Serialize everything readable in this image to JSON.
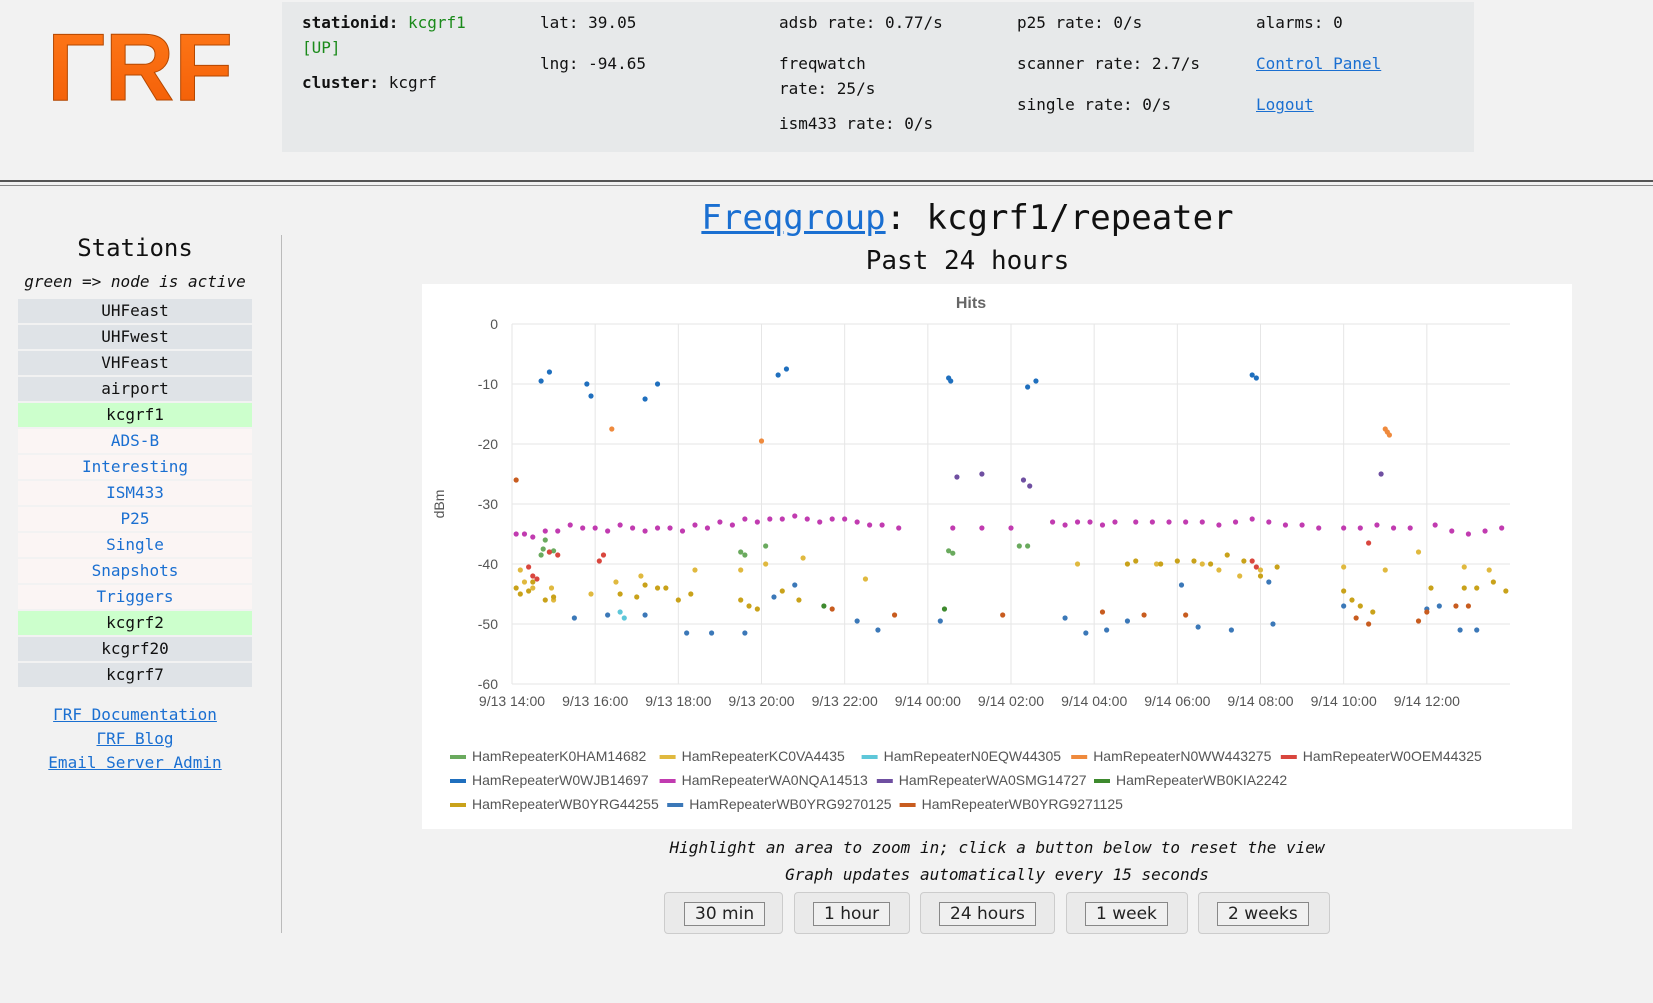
{
  "logo": {
    "text": "ΓRF"
  },
  "header": {
    "stationid_label": "stationid:",
    "stationid_value": "kcgrf1",
    "stationid_status": "[UP]",
    "cluster_label": "cluster:",
    "cluster_value": "kcgrf",
    "lat": "lat: 39.05",
    "lng": "lng: -94.65",
    "adsb_rate": "adsb rate: 0.77/s",
    "freqwatch_rate_line1": "freqwatch",
    "freqwatch_rate_line2": "rate: 25/s",
    "ism433_rate": "ism433 rate: 0/s",
    "p25_rate": "p25 rate: 0/s",
    "scanner_rate": "scanner rate: 2.7/s",
    "single_rate": "single rate: 0/s",
    "alarms": "alarms: 0",
    "control_panel": "Control Panel",
    "logout": "Logout"
  },
  "sidebar": {
    "title": "Stations",
    "note": "green => node is active",
    "items": [
      {
        "label": "UHFeast",
        "kind": "inactive"
      },
      {
        "label": "UHFwest",
        "kind": "inactive"
      },
      {
        "label": "VHFeast",
        "kind": "inactive"
      },
      {
        "label": "airport",
        "kind": "inactive"
      },
      {
        "label": "kcgrf1",
        "kind": "active"
      },
      {
        "label": "ADS-B",
        "kind": "link"
      },
      {
        "label": "Interesting",
        "kind": "link"
      },
      {
        "label": "ISM433",
        "kind": "link"
      },
      {
        "label": "P25",
        "kind": "link"
      },
      {
        "label": "Single",
        "kind": "link"
      },
      {
        "label": "Snapshots",
        "kind": "link"
      },
      {
        "label": "Triggers",
        "kind": "link"
      },
      {
        "label": "kcgrf2",
        "kind": "active"
      },
      {
        "label": "kcgrf20",
        "kind": "inactive"
      },
      {
        "label": "kcgrf7",
        "kind": "inactive"
      }
    ],
    "links": [
      "ΓRF Documentation",
      "ΓRF Blog",
      "Email Server Admin"
    ]
  },
  "main": {
    "title_link": "Freqgroup",
    "title_rest": ": kcgrf1/repeater",
    "subtitle": "Past 24 hours",
    "note1": "Highlight an area to zoom in; click a button below to reset the view",
    "note2": "Graph updates automatically every 15 seconds",
    "buttons": [
      "30 min",
      "1 hour",
      "24 hours",
      "1 week",
      "2 weeks"
    ]
  },
  "chart_data": {
    "type": "scatter",
    "title": "Hits",
    "ylabel": "dBm",
    "ylim": [
      -60,
      0
    ],
    "yticks": [
      0,
      -10,
      -20,
      -30,
      -40,
      -50,
      -60
    ],
    "xlim_hours": [
      14,
      38
    ],
    "xticks": [
      "9/13 14:00",
      "9/13 16:00",
      "9/13 18:00",
      "9/13 20:00",
      "9/13 22:00",
      "9/14 00:00",
      "9/14 02:00",
      "9/14 04:00",
      "9/14 06:00",
      "9/14 08:00",
      "9/14 10:00",
      "9/14 12:00"
    ],
    "grid": true,
    "legend_position": "bottom",
    "series": [
      {
        "name": "HamRepeaterK0HAM14682",
        "color": "#6aaa5e",
        "points": [
          [
            14.7,
            -38.5
          ],
          [
            14.75,
            -37.5
          ],
          [
            14.8,
            -36
          ],
          [
            14.9,
            -38
          ],
          [
            15.0,
            -37.8
          ],
          [
            19.5,
            -38
          ],
          [
            19.6,
            -38.5
          ],
          [
            20.1,
            -37
          ],
          [
            24.5,
            -37.8
          ],
          [
            24.6,
            -38.2
          ],
          [
            26.2,
            -37
          ],
          [
            26.4,
            -37
          ]
        ]
      },
      {
        "name": "HamRepeaterKC0VA4435",
        "color": "#e0b93f",
        "points": [
          [
            14.2,
            -41
          ],
          [
            14.3,
            -43
          ],
          [
            14.5,
            -44
          ],
          [
            14.95,
            -44
          ],
          [
            15.0,
            -46
          ],
          [
            15.9,
            -45
          ],
          [
            16.5,
            -43
          ],
          [
            17.1,
            -42
          ],
          [
            18.4,
            -41
          ],
          [
            19.5,
            -41
          ],
          [
            20.1,
            -40
          ],
          [
            21.0,
            -39
          ],
          [
            22.5,
            -42.5
          ],
          [
            27.6,
            -40
          ],
          [
            29.5,
            -40
          ],
          [
            30.6,
            -40
          ],
          [
            31.0,
            -41
          ],
          [
            31.5,
            -42
          ],
          [
            32.0,
            -41
          ],
          [
            34.0,
            -40.5
          ],
          [
            35.0,
            -41
          ],
          [
            35.8,
            -38
          ],
          [
            36.9,
            -40.5
          ],
          [
            37.5,
            -41
          ]
        ]
      },
      {
        "name": "HamRepeaterN0EQW44305",
        "color": "#5ec7d9",
        "points": [
          [
            16.7,
            -49
          ],
          [
            16.6,
            -48
          ]
        ]
      },
      {
        "name": "HamRepeaterN0WW443275",
        "color": "#ef8a3d",
        "points": [
          [
            16.4,
            -17.5
          ],
          [
            20.0,
            -19.5
          ],
          [
            35.0,
            -17.5
          ],
          [
            35.05,
            -18
          ],
          [
            35.1,
            -18.5
          ]
        ]
      },
      {
        "name": "HamRepeaterW0OEM44325",
        "color": "#d9463e",
        "points": [
          [
            14.4,
            -40.5
          ],
          [
            14.5,
            -42
          ],
          [
            14.6,
            -42.5
          ],
          [
            14.9,
            -38
          ],
          [
            15.1,
            -38.5
          ],
          [
            16.1,
            -39.5
          ],
          [
            16.2,
            -38.5
          ],
          [
            31.8,
            -39.5
          ],
          [
            31.9,
            -40.5
          ],
          [
            34.6,
            -36.5
          ]
        ]
      },
      {
        "name": "HamRepeaterW0WJB14697",
        "color": "#1f6fbe",
        "points": [
          [
            14.7,
            -9.5
          ],
          [
            14.9,
            -8
          ],
          [
            15.8,
            -10
          ],
          [
            15.9,
            -12
          ],
          [
            17.2,
            -12.5
          ],
          [
            17.5,
            -10
          ],
          [
            20.4,
            -8.5
          ],
          [
            20.6,
            -7.5
          ],
          [
            24.5,
            -9
          ],
          [
            24.55,
            -9.5
          ],
          [
            26.4,
            -10.5
          ],
          [
            26.6,
            -9.5
          ],
          [
            31.8,
            -8.5
          ],
          [
            31.9,
            -9
          ]
        ]
      },
      {
        "name": "HamRepeaterWA0NQA14513",
        "color": "#c13bb0",
        "points": [
          [
            14.1,
            -35
          ],
          [
            14.3,
            -35
          ],
          [
            14.5,
            -35.5
          ],
          [
            14.8,
            -34.5
          ],
          [
            15.1,
            -34.5
          ],
          [
            15.4,
            -33.5
          ],
          [
            15.7,
            -34
          ],
          [
            16.0,
            -34
          ],
          [
            16.3,
            -34.5
          ],
          [
            16.6,
            -33.5
          ],
          [
            16.9,
            -34
          ],
          [
            17.2,
            -34.5
          ],
          [
            17.5,
            -34
          ],
          [
            17.8,
            -34
          ],
          [
            18.1,
            -34.5
          ],
          [
            18.4,
            -33.5
          ],
          [
            18.7,
            -34
          ],
          [
            19.0,
            -33
          ],
          [
            19.3,
            -33.5
          ],
          [
            19.6,
            -32.5
          ],
          [
            19.9,
            -33
          ],
          [
            20.2,
            -32.5
          ],
          [
            20.5,
            -32.5
          ],
          [
            20.8,
            -32
          ],
          [
            21.1,
            -32.5
          ],
          [
            21.4,
            -33
          ],
          [
            21.7,
            -32.5
          ],
          [
            22.0,
            -32.5
          ],
          [
            22.3,
            -33
          ],
          [
            22.6,
            -33.5
          ],
          [
            22.9,
            -33.5
          ],
          [
            23.3,
            -34
          ],
          [
            24.6,
            -34
          ],
          [
            25.3,
            -34
          ],
          [
            26.0,
            -34
          ],
          [
            27.0,
            -33
          ],
          [
            27.3,
            -33.5
          ],
          [
            27.6,
            -33
          ],
          [
            27.9,
            -33
          ],
          [
            28.2,
            -33.5
          ],
          [
            28.5,
            -33
          ],
          [
            29.0,
            -33
          ],
          [
            29.4,
            -33
          ],
          [
            29.8,
            -33
          ],
          [
            30.2,
            -33
          ],
          [
            30.6,
            -33
          ],
          [
            31.0,
            -33.5
          ],
          [
            31.4,
            -33
          ],
          [
            31.8,
            -32.5
          ],
          [
            32.2,
            -33
          ],
          [
            32.6,
            -33.5
          ],
          [
            33.0,
            -33.5
          ],
          [
            33.4,
            -34
          ],
          [
            34.0,
            -34
          ],
          [
            34.4,
            -34
          ],
          [
            34.8,
            -33.5
          ],
          [
            35.2,
            -34
          ],
          [
            35.6,
            -34
          ],
          [
            36.2,
            -33.5
          ],
          [
            36.6,
            -34.5
          ],
          [
            37.0,
            -35
          ],
          [
            37.4,
            -34.5
          ],
          [
            37.8,
            -34
          ]
        ]
      },
      {
        "name": "HamRepeaterWA0SMG14727",
        "color": "#6f4fa1",
        "points": [
          [
            24.7,
            -25.5
          ],
          [
            25.3,
            -25
          ],
          [
            26.3,
            -26
          ],
          [
            26.45,
            -27
          ],
          [
            34.9,
            -25
          ]
        ]
      },
      {
        "name": "HamRepeaterWB0KIA2242",
        "color": "#3e8a2e",
        "points": [
          [
            21.5,
            -47
          ],
          [
            24.4,
            -47.5
          ]
        ]
      },
      {
        "name": "HamRepeaterWB0YRG44255",
        "color": "#c9a21a",
        "points": [
          [
            14.1,
            -44
          ],
          [
            14.2,
            -45
          ],
          [
            14.4,
            -44.5
          ],
          [
            14.5,
            -43
          ],
          [
            14.8,
            -46
          ],
          [
            15.0,
            -45.5
          ],
          [
            16.6,
            -45
          ],
          [
            17.0,
            -45.5
          ],
          [
            17.2,
            -43.5
          ],
          [
            17.5,
            -44
          ],
          [
            17.7,
            -44
          ],
          [
            18.0,
            -46
          ],
          [
            18.3,
            -45
          ],
          [
            19.5,
            -46
          ],
          [
            19.7,
            -47
          ],
          [
            19.9,
            -47.5
          ],
          [
            20.5,
            -44.5
          ],
          [
            20.9,
            -46
          ],
          [
            28.8,
            -40
          ],
          [
            29.0,
            -39.5
          ],
          [
            29.6,
            -40
          ],
          [
            30.0,
            -39.5
          ],
          [
            30.4,
            -39.5
          ],
          [
            30.8,
            -40
          ],
          [
            31.2,
            -38.5
          ],
          [
            31.6,
            -39.5
          ],
          [
            32.0,
            -42
          ],
          [
            32.4,
            -40.5
          ],
          [
            34.0,
            -44.5
          ],
          [
            34.2,
            -46
          ],
          [
            34.4,
            -47
          ],
          [
            34.7,
            -48
          ],
          [
            36.1,
            -44
          ],
          [
            36.9,
            -44
          ],
          [
            37.2,
            -44
          ],
          [
            37.6,
            -43
          ],
          [
            37.9,
            -44.5
          ]
        ]
      },
      {
        "name": "HamRepeaterWB0YRG9270125",
        "color": "#3b78b8",
        "points": [
          [
            15.5,
            -49
          ],
          [
            16.3,
            -48.5
          ],
          [
            17.2,
            -48.5
          ],
          [
            18.2,
            -51.5
          ],
          [
            18.8,
            -51.5
          ],
          [
            19.6,
            -51.5
          ],
          [
            20.3,
            -45.5
          ],
          [
            20.8,
            -43.5
          ],
          [
            22.3,
            -49.5
          ],
          [
            22.8,
            -51
          ],
          [
            24.3,
            -49.5
          ],
          [
            27.3,
            -49
          ],
          [
            27.8,
            -51.5
          ],
          [
            28.3,
            -51
          ],
          [
            28.8,
            -49.5
          ],
          [
            30.1,
            -43.5
          ],
          [
            30.5,
            -50.5
          ],
          [
            31.3,
            -51
          ],
          [
            32.2,
            -43
          ],
          [
            32.3,
            -50
          ],
          [
            34.0,
            -47
          ],
          [
            36.0,
            -47.5
          ],
          [
            36.3,
            -47
          ],
          [
            36.8,
            -51
          ],
          [
            37.2,
            -51
          ]
        ]
      },
      {
        "name": "HamRepeaterWB0YRG9271125",
        "color": "#c85c1f",
        "points": [
          [
            14.1,
            -26
          ],
          [
            21.7,
            -47.5
          ],
          [
            23.2,
            -48.5
          ],
          [
            25.8,
            -48.5
          ],
          [
            28.2,
            -48
          ],
          [
            29.2,
            -48.5
          ],
          [
            30.2,
            -48.5
          ],
          [
            34.3,
            -49
          ],
          [
            34.6,
            -50
          ],
          [
            35.8,
            -49.5
          ],
          [
            36.0,
            -48
          ],
          [
            36.7,
            -47
          ],
          [
            37.0,
            -47
          ]
        ]
      }
    ]
  }
}
